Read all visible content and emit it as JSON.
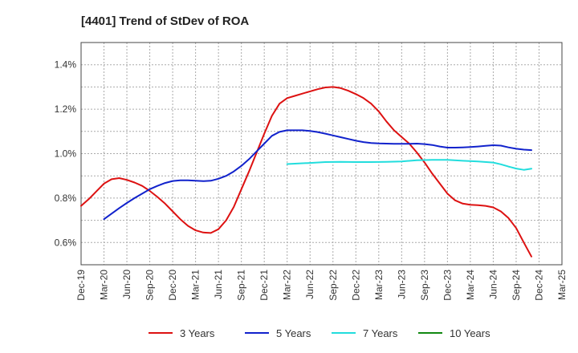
{
  "chart_data": {
    "type": "line",
    "title": "[4401]  Trend of StDev of ROA",
    "xlabel": "",
    "ylabel": "",
    "ylim": [
      0.5,
      1.5
    ],
    "yticks": [
      0.6,
      0.8,
      1.0,
      1.2,
      1.4
    ],
    "ytick_labels": [
      "0.6%",
      "0.8%",
      "1.0%",
      "1.2%",
      "1.4%"
    ],
    "x_ticks": [
      "Dec-19",
      "Mar-20",
      "Jun-20",
      "Sep-20",
      "Dec-20",
      "Mar-21",
      "Jun-21",
      "Sep-21",
      "Dec-21",
      "Mar-22",
      "Jun-22",
      "Sep-22",
      "Dec-22",
      "Mar-23",
      "Jun-23",
      "Sep-23",
      "Dec-23",
      "Mar-24",
      "Jun-24",
      "Sep-24",
      "Dec-24",
      "Mar-25"
    ],
    "x_unit": "months since Dec-19",
    "grid": true,
    "legend_position": "bottom",
    "series": [
      {
        "name": "3 Years",
        "color": "#dd1111",
        "points": [
          [
            0,
            0.765
          ],
          [
            1,
            0.795
          ],
          [
            2,
            0.83
          ],
          [
            3,
            0.865
          ],
          [
            4,
            0.885
          ],
          [
            5,
            0.89
          ],
          [
            6,
            0.882
          ],
          [
            7,
            0.87
          ],
          [
            8,
            0.855
          ],
          [
            9,
            0.832
          ],
          [
            10,
            0.805
          ],
          [
            11,
            0.775
          ],
          [
            12,
            0.74
          ],
          [
            13,
            0.705
          ],
          [
            14,
            0.675
          ],
          [
            15,
            0.655
          ],
          [
            16,
            0.645
          ],
          [
            17,
            0.643
          ],
          [
            18,
            0.66
          ],
          [
            19,
            0.7
          ],
          [
            20,
            0.76
          ],
          [
            21,
            0.84
          ],
          [
            22,
            0.92
          ],
          [
            23,
            1.005
          ],
          [
            24,
            1.09
          ],
          [
            25,
            1.17
          ],
          [
            26,
            1.225
          ],
          [
            27,
            1.25
          ],
          [
            28,
            1.26
          ],
          [
            29,
            1.27
          ],
          [
            30,
            1.28
          ],
          [
            31,
            1.29
          ],
          [
            32,
            1.298
          ],
          [
            33,
            1.3
          ],
          [
            34,
            1.295
          ],
          [
            35,
            1.283
          ],
          [
            36,
            1.268
          ],
          [
            37,
            1.25
          ],
          [
            38,
            1.225
          ],
          [
            39,
            1.19
          ],
          [
            40,
            1.145
          ],
          [
            41,
            1.105
          ],
          [
            42,
            1.075
          ],
          [
            43,
            1.045
          ],
          [
            44,
            1.005
          ],
          [
            45,
            0.96
          ],
          [
            46,
            0.91
          ],
          [
            47,
            0.865
          ],
          [
            48,
            0.82
          ],
          [
            49,
            0.79
          ],
          [
            50,
            0.775
          ],
          [
            51,
            0.77
          ],
          [
            52,
            0.768
          ],
          [
            53,
            0.765
          ],
          [
            54,
            0.758
          ],
          [
            55,
            0.74
          ],
          [
            56,
            0.71
          ],
          [
            57,
            0.665
          ],
          [
            58,
            0.6
          ],
          [
            59,
            0.537
          ]
        ]
      },
      {
        "name": "5 Years",
        "color": "#1122cc",
        "points": [
          [
            3,
            0.705
          ],
          [
            4,
            0.73
          ],
          [
            5,
            0.755
          ],
          [
            6,
            0.778
          ],
          [
            7,
            0.8
          ],
          [
            8,
            0.82
          ],
          [
            9,
            0.84
          ],
          [
            10,
            0.855
          ],
          [
            11,
            0.868
          ],
          [
            12,
            0.877
          ],
          [
            13,
            0.88
          ],
          [
            14,
            0.88
          ],
          [
            15,
            0.878
          ],
          [
            16,
            0.876
          ],
          [
            17,
            0.878
          ],
          [
            18,
            0.887
          ],
          [
            19,
            0.9
          ],
          [
            20,
            0.92
          ],
          [
            21,
            0.945
          ],
          [
            22,
            0.975
          ],
          [
            23,
            1.01
          ],
          [
            24,
            1.045
          ],
          [
            25,
            1.08
          ],
          [
            26,
            1.098
          ],
          [
            27,
            1.105
          ],
          [
            28,
            1.105
          ],
          [
            29,
            1.105
          ],
          [
            30,
            1.102
          ],
          [
            31,
            1.097
          ],
          [
            32,
            1.09
          ],
          [
            33,
            1.082
          ],
          [
            34,
            1.074
          ],
          [
            35,
            1.066
          ],
          [
            36,
            1.058
          ],
          [
            37,
            1.052
          ],
          [
            38,
            1.048
          ],
          [
            39,
            1.046
          ],
          [
            40,
            1.045
          ],
          [
            41,
            1.044
          ],
          [
            42,
            1.044
          ],
          [
            43,
            1.044
          ],
          [
            44,
            1.045
          ],
          [
            45,
            1.043
          ],
          [
            46,
            1.039
          ],
          [
            47,
            1.032
          ],
          [
            48,
            1.027
          ],
          [
            49,
            1.027
          ],
          [
            50,
            1.028
          ],
          [
            51,
            1.03
          ],
          [
            52,
            1.032
          ],
          [
            53,
            1.035
          ],
          [
            54,
            1.038
          ],
          [
            55,
            1.036
          ],
          [
            56,
            1.028
          ],
          [
            57,
            1.022
          ],
          [
            58,
            1.018
          ],
          [
            59,
            1.016
          ]
        ]
      },
      {
        "name": "7 Years",
        "color": "#22dddd",
        "points": [
          [
            27,
            0.953
          ],
          [
            28,
            0.955
          ],
          [
            30,
            0.958
          ],
          [
            32,
            0.962
          ],
          [
            34,
            0.963
          ],
          [
            36,
            0.962
          ],
          [
            38,
            0.962
          ],
          [
            40,
            0.963
          ],
          [
            42,
            0.965
          ],
          [
            44,
            0.97
          ],
          [
            46,
            0.972
          ],
          [
            48,
            0.972
          ],
          [
            50,
            0.968
          ],
          [
            52,
            0.965
          ],
          [
            54,
            0.96
          ],
          [
            55,
            0.952
          ],
          [
            56,
            0.942
          ],
          [
            57,
            0.933
          ],
          [
            58,
            0.927
          ],
          [
            59,
            0.932
          ]
        ]
      },
      {
        "name": "10 Years",
        "color": "#118811",
        "points": []
      }
    ]
  }
}
